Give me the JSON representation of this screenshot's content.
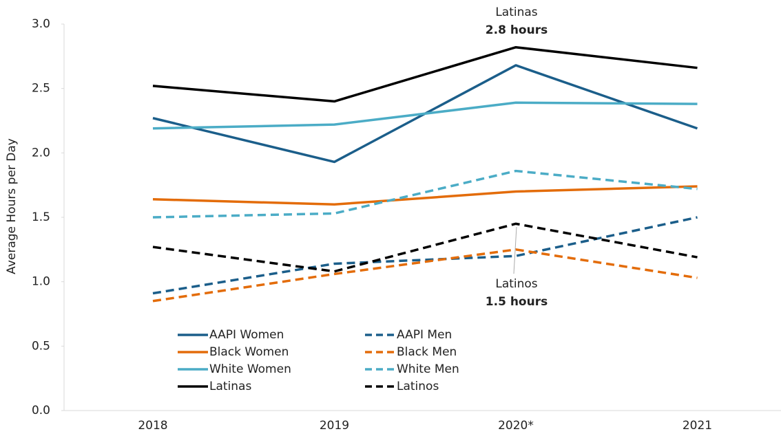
{
  "chart_data": {
    "type": "line",
    "y_label": "Average Hours per Day",
    "categories": [
      "2018",
      "2019",
      "2020*",
      "2021"
    ],
    "ylim": [
      0,
      3
    ],
    "yticks": [
      {
        "value": 0,
        "label": "0.0"
      },
      {
        "value": 0.5,
        "label": "0.5"
      },
      {
        "value": 1,
        "label": "1.0"
      },
      {
        "value": 1.5,
        "label": "1.5"
      },
      {
        "value": 2,
        "label": "2.0"
      },
      {
        "value": 2.5,
        "label": "2.5"
      },
      {
        "value": 3,
        "label": "3.0"
      }
    ],
    "series": [
      {
        "name": "AAPI Women",
        "color": "#1b5e8a",
        "dash": false,
        "values": [
          2.27,
          1.93,
          2.68,
          2.19
        ]
      },
      {
        "name": "AAPI Men",
        "color": "#1b5e8a",
        "dash": true,
        "values": [
          0.91,
          1.14,
          1.2,
          1.5
        ]
      },
      {
        "name": "Black Women",
        "color": "#e36c0a",
        "dash": false,
        "values": [
          1.64,
          1.6,
          1.7,
          1.74
        ]
      },
      {
        "name": "Black Men",
        "color": "#e36c0a",
        "dash": true,
        "values": [
          0.85,
          1.06,
          1.25,
          1.03
        ]
      },
      {
        "name": "White Women",
        "color": "#4bacc6",
        "dash": false,
        "values": [
          2.19,
          2.22,
          2.39,
          2.38
        ]
      },
      {
        "name": "White Men",
        "color": "#4bacc6",
        "dash": true,
        "values": [
          1.5,
          1.53,
          1.86,
          1.72
        ]
      },
      {
        "name": "Latinas",
        "color": "#000000",
        "dash": false,
        "values": [
          2.52,
          2.4,
          2.82,
          2.66
        ]
      },
      {
        "name": "Latinos",
        "color": "#000000",
        "dash": true,
        "values": [
          1.27,
          1.08,
          1.45,
          1.19
        ]
      }
    ],
    "annotations": [
      {
        "name": "Latinas",
        "text": "2.8 hours"
      },
      {
        "name": "Latinos",
        "text": "1.5 hours"
      }
    ]
  }
}
